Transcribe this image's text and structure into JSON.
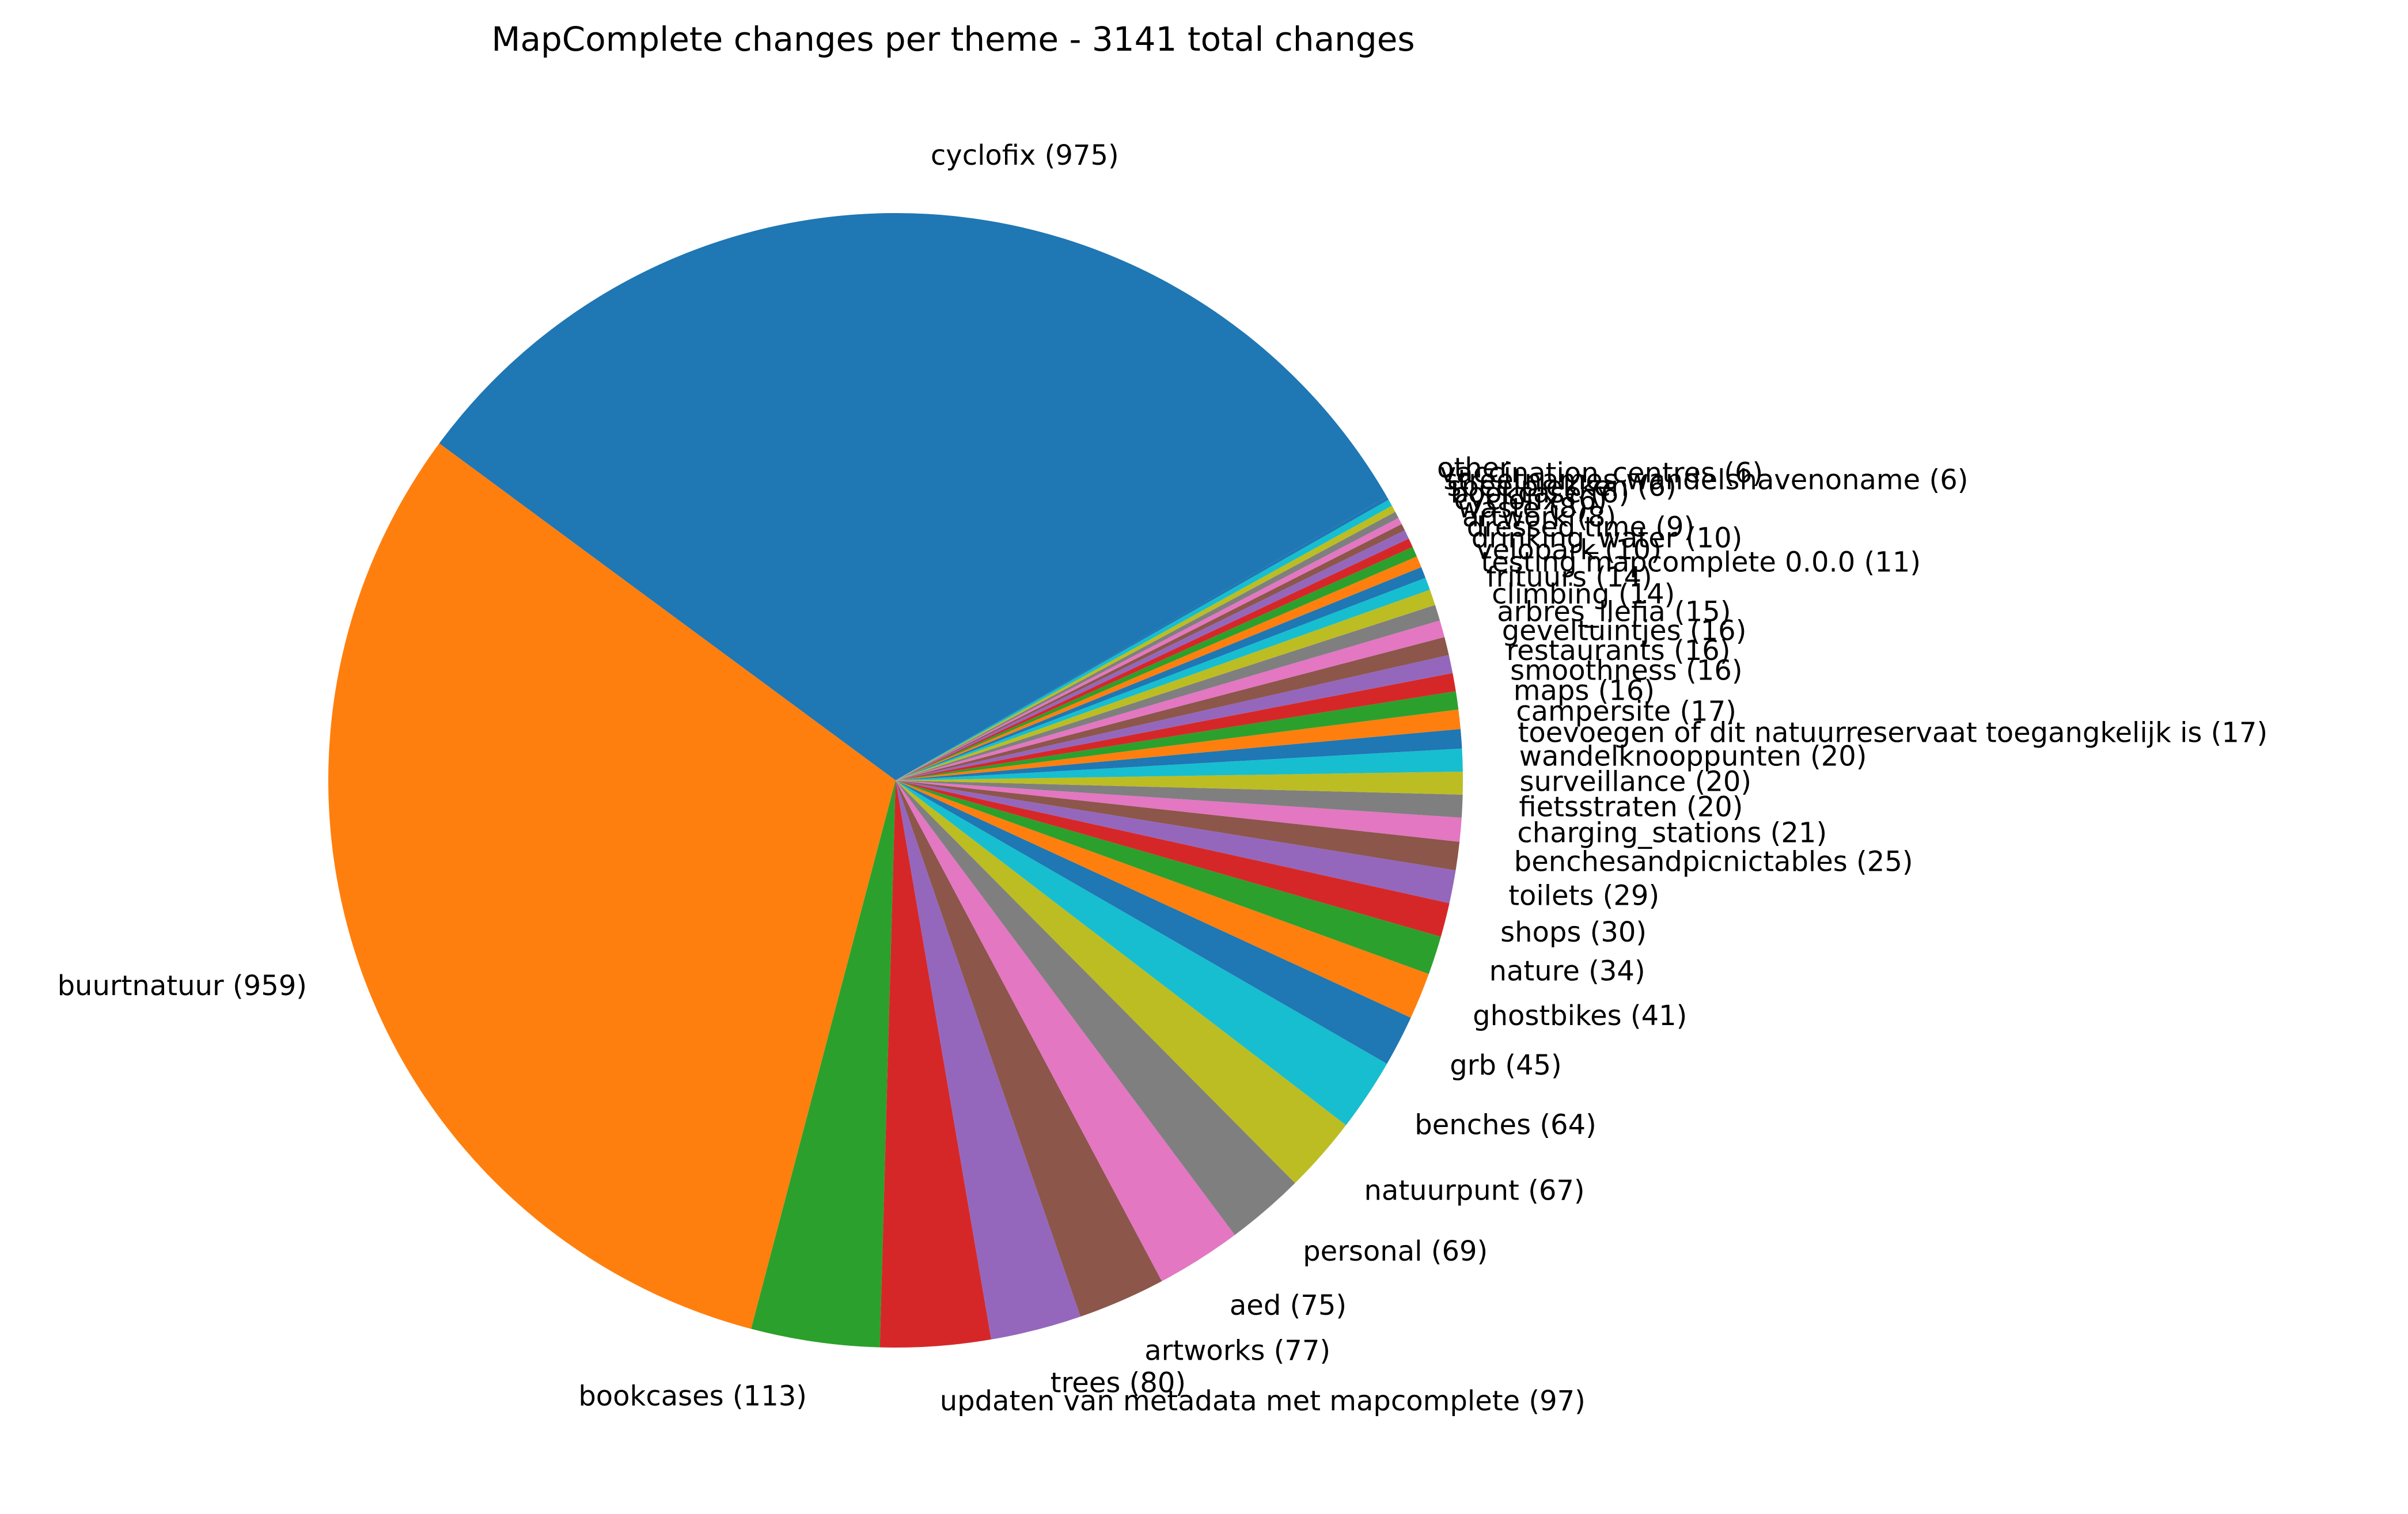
{
  "chart_data": {
    "type": "pie",
    "title": "MapComplete changes per theme - 3141 total changes",
    "start_angle_deg": 30,
    "direction": "counterclockwise",
    "slices": [
      {
        "label": "cyclofix (975)",
        "value": 975,
        "color": "#1f77b4"
      },
      {
        "label": "buurtnatuur (959)",
        "value": 959,
        "color": "#ff7f0e"
      },
      {
        "label": "bookcases (113)",
        "value": 113,
        "color": "#2ca02c"
      },
      {
        "label": "updaten van metadata met mapcomplete (97)",
        "value": 97,
        "color": "#d62728"
      },
      {
        "label": "trees (80)",
        "value": 80,
        "color": "#9467bd"
      },
      {
        "label": "artworks (77)",
        "value": 77,
        "color": "#8c564b"
      },
      {
        "label": "aed (75)",
        "value": 75,
        "color": "#e377c2"
      },
      {
        "label": "personal (69)",
        "value": 69,
        "color": "#7f7f7f"
      },
      {
        "label": "natuurpunt (67)",
        "value": 67,
        "color": "#bcbd22"
      },
      {
        "label": "benches (64)",
        "value": 64,
        "color": "#17becf"
      },
      {
        "label": "grb (45)",
        "value": 45,
        "color": "#1f77b4"
      },
      {
        "label": "ghostbikes (41)",
        "value": 41,
        "color": "#ff7f0e"
      },
      {
        "label": "nature (34)",
        "value": 34,
        "color": "#2ca02c"
      },
      {
        "label": "shops (30)",
        "value": 30,
        "color": "#d62728"
      },
      {
        "label": "toilets (29)",
        "value": 29,
        "color": "#9467bd"
      },
      {
        "label": "benchesandpicnictables (25)",
        "value": 25,
        "color": "#8c564b"
      },
      {
        "label": "charging_stations (21)",
        "value": 21,
        "color": "#e377c2"
      },
      {
        "label": "fietsstraten (20)",
        "value": 20,
        "color": "#7f7f7f"
      },
      {
        "label": "surveillance (20)",
        "value": 20,
        "color": "#bcbd22"
      },
      {
        "label": "wandelknooppunten (20)",
        "value": 20,
        "color": "#17becf"
      },
      {
        "label": "toevoegen of dit natuurreservaat toegangkelijk is (17)",
        "value": 17,
        "color": "#1f77b4"
      },
      {
        "label": "campersite (17)",
        "value": 17,
        "color": "#ff7f0e"
      },
      {
        "label": "maps (16)",
        "value": 16,
        "color": "#2ca02c"
      },
      {
        "label": "smoothness (16)",
        "value": 16,
        "color": "#d62728"
      },
      {
        "label": "restaurants (16)",
        "value": 16,
        "color": "#9467bd"
      },
      {
        "label": "geveltuintjes (16)",
        "value": 16,
        "color": "#8c564b"
      },
      {
        "label": "arbres_llefia (15)",
        "value": 15,
        "color": "#e377c2"
      },
      {
        "label": "climbing (14)",
        "value": 14,
        "color": "#7f7f7f"
      },
      {
        "label": "frituurs (14)",
        "value": 14,
        "color": "#bcbd22"
      },
      {
        "label": "testing mapcomplete 0.0.0 (11)",
        "value": 11,
        "color": "#17becf"
      },
      {
        "label": "velopark (10)",
        "value": 10,
        "color": "#1f77b4"
      },
      {
        "label": "drinking_water (10)",
        "value": 10,
        "color": "#ff7f0e"
      },
      {
        "label": "dressed time (9)",
        "value": 9,
        "color": "#2ca02c"
      },
      {
        "label": "artwork (8)",
        "value": 8,
        "color": "#d62728"
      },
      {
        "label": "waste (8)",
        "value": 8,
        "color": "#9467bd"
      },
      {
        "label": "cyclofix (6)",
        "value": 6,
        "color": "#8c564b"
      },
      {
        "label": "bookcase (6)",
        "value": 6,
        "color": "#e377c2"
      },
      {
        "label": "speelplekken (6)",
        "value": 6,
        "color": "#7f7f7f"
      },
      {
        "label": "streetnames wandelshavenoname (6)",
        "value": 6,
        "color": "#bcbd22"
      },
      {
        "label": "vaccination_centres (6)",
        "value": 6,
        "color": "#17becf"
      },
      {
        "label": "other",
        "value": 3,
        "color": "#1f77b4"
      }
    ]
  }
}
